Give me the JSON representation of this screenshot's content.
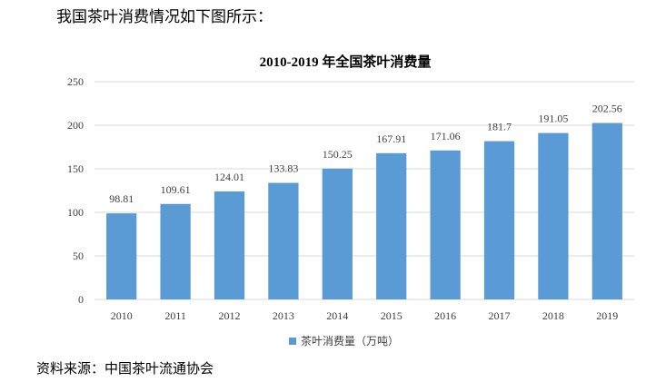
{
  "intro_text": "我国茶叶消费情况如下图所示：",
  "source_text": "资料来源：中国茶叶流通协会",
  "colors": {
    "bar": "#5b9bd5",
    "grid": "#d9d9d9",
    "axis_text": "#404040"
  },
  "chart_data": {
    "type": "bar",
    "title": "2010-2019 年全国茶叶消费量",
    "xlabel": "",
    "ylabel": "",
    "categories": [
      "2010",
      "2011",
      "2012",
      "2013",
      "2014",
      "2015",
      "2016",
      "2017",
      "2018",
      "2019"
    ],
    "series": [
      {
        "name": "茶叶消费量（万吨）",
        "values": [
          98.81,
          109.61,
          124.01,
          133.83,
          150.25,
          167.91,
          171.06,
          181.7,
          191.05,
          202.56
        ],
        "labels": [
          "98.81",
          "109.61",
          "124.01",
          "133.83",
          "150.25",
          "167.91",
          "171.06",
          "181.7",
          "191.05",
          "202.56"
        ]
      }
    ],
    "ylim": [
      0,
      250
    ],
    "yticks": [
      "0",
      "50",
      "100",
      "150",
      "200",
      "250"
    ],
    "grid": "horizontal",
    "legend_position": "bottom"
  }
}
